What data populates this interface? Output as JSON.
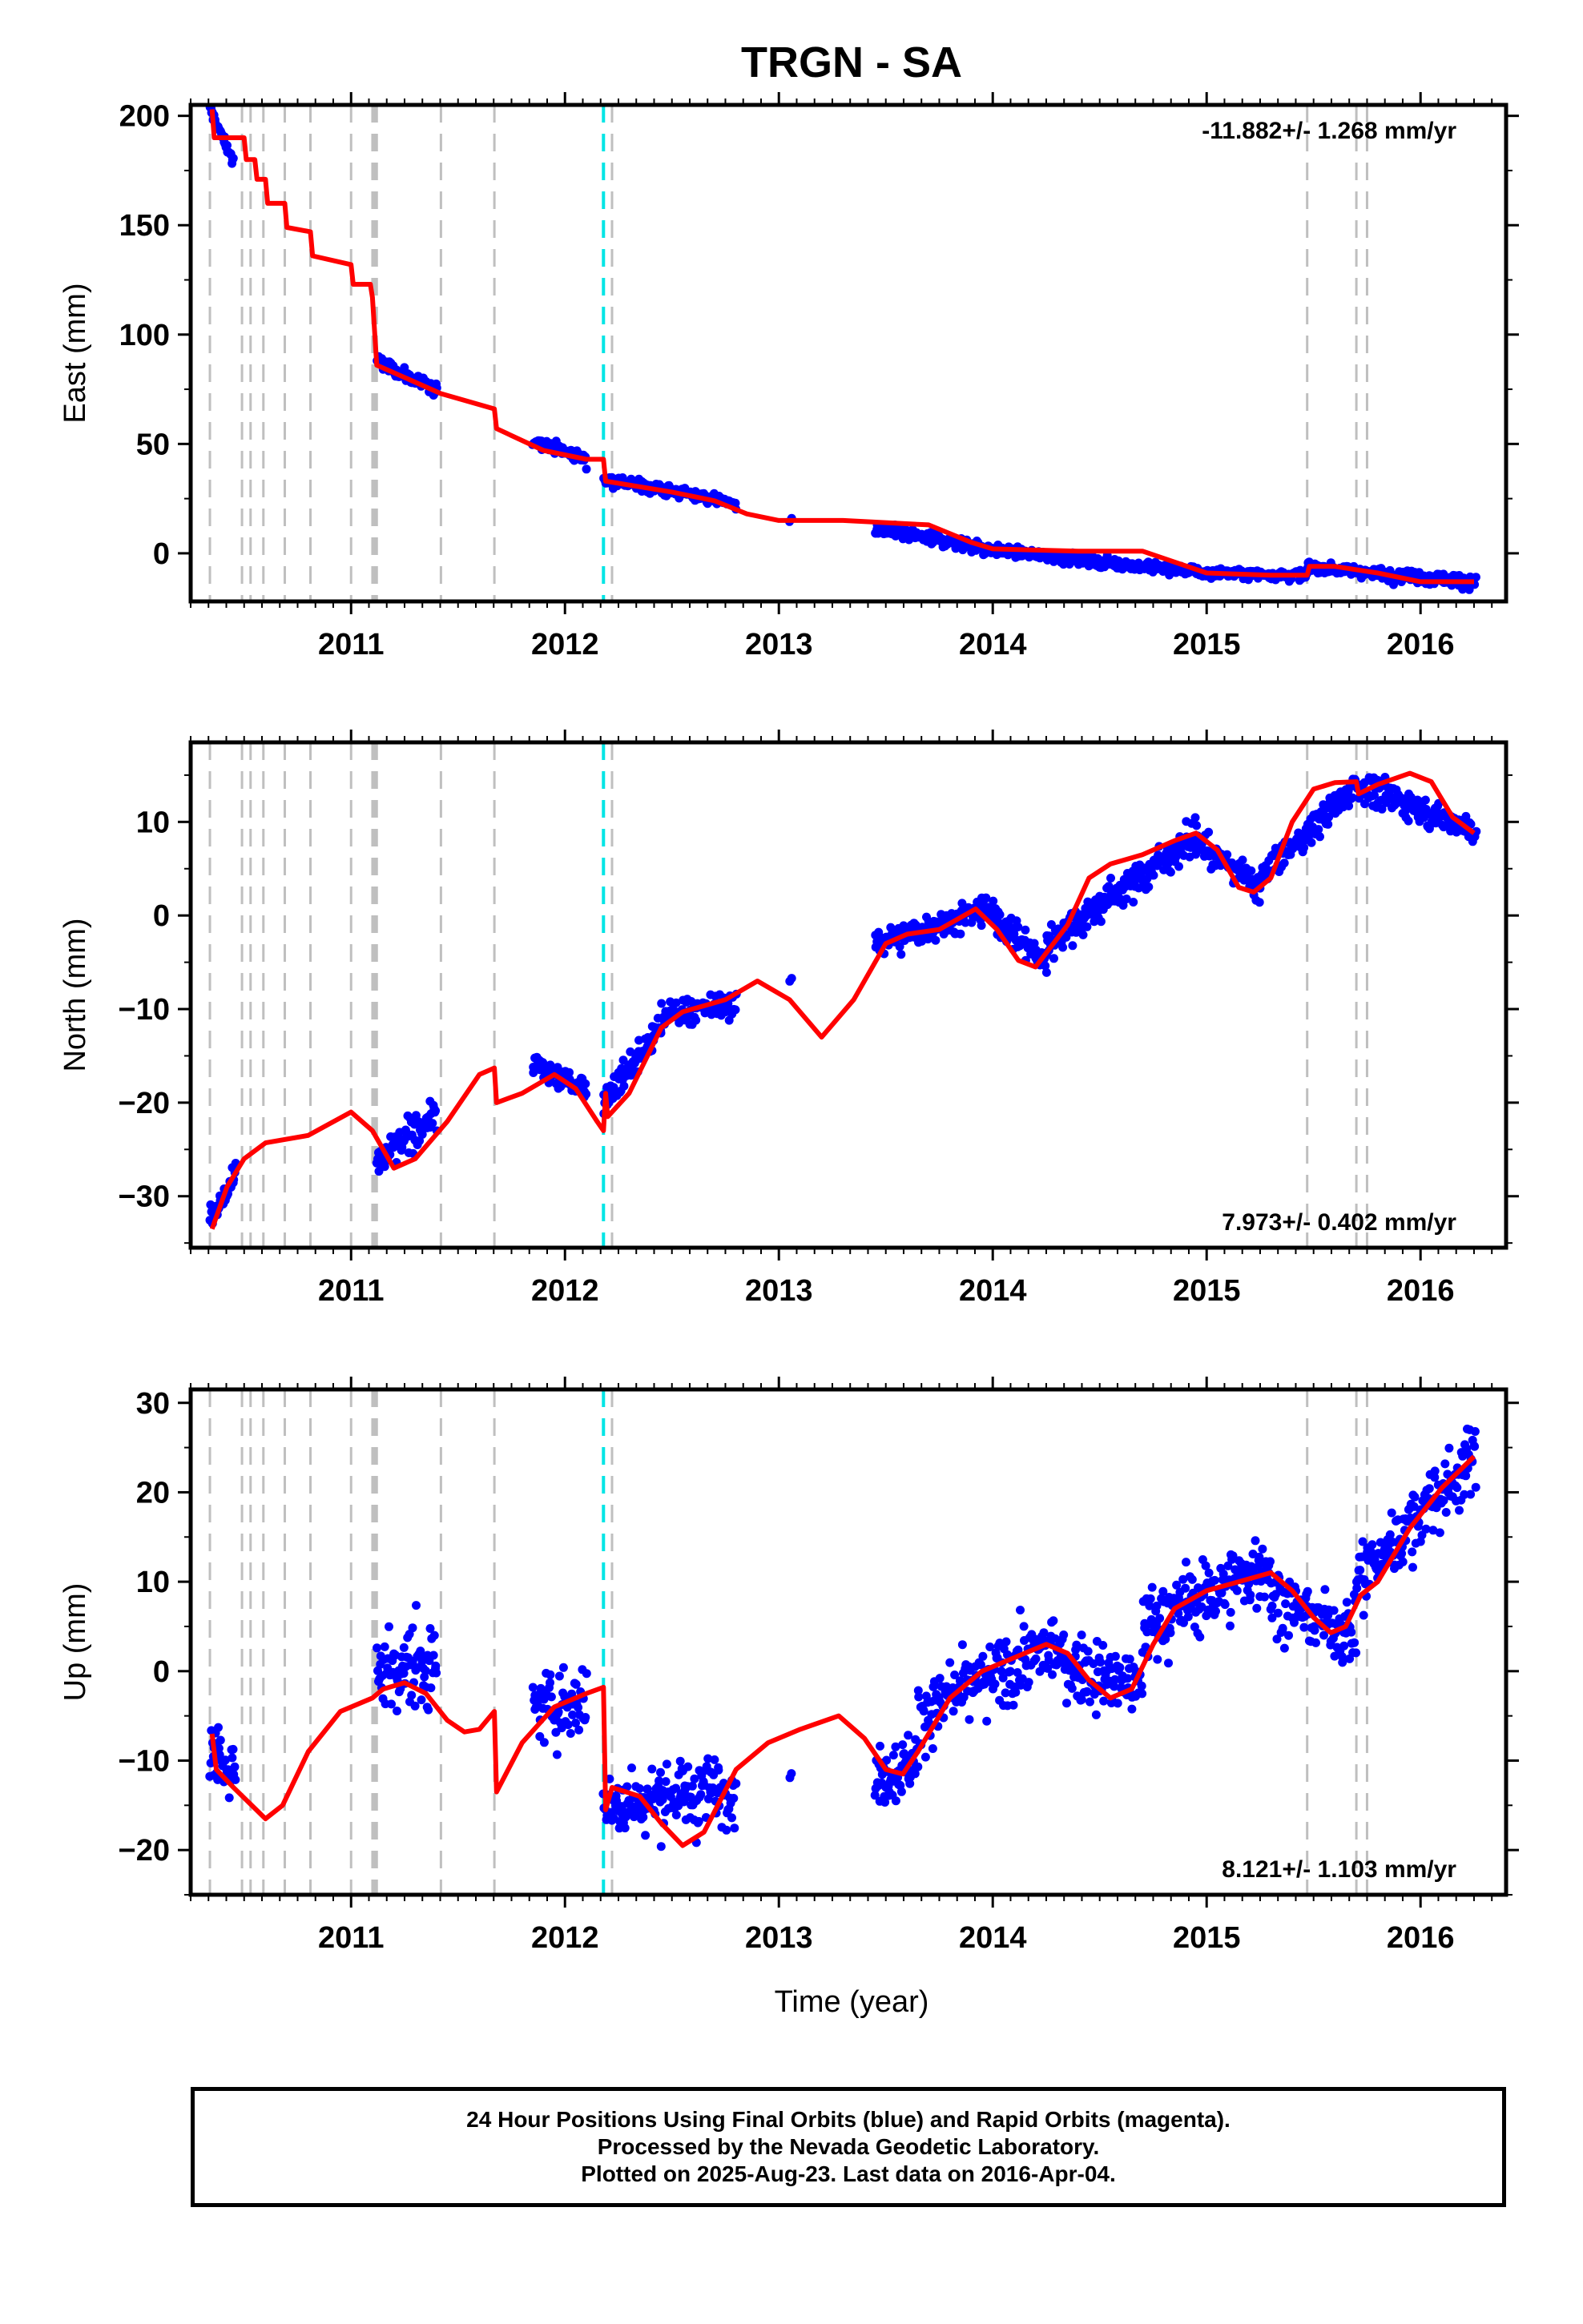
{
  "title": "TRGN - SA",
  "footer": {
    "line1": "24 Hour Positions Using Final Orbits (blue) and Rapid Orbits (magenta).",
    "line2": "Processed by the Nevada Geodetic Laboratory.",
    "line3": "Plotted on 2025-Aug-23. Last data on 2016-Apr-04."
  },
  "colors": {
    "final": "#0000ff",
    "model": "#ff0000",
    "event_gray": "#bfbfbf",
    "event_cyan": "#00e5e5"
  },
  "chart_data": [
    {
      "type": "scatter",
      "component": "east",
      "ylabel": "East (mm)",
      "rate_label": "-11.882+/- 1.268 mm/yr",
      "xlim": [
        2010.25,
        2016.4
      ],
      "ylim": [
        -22,
        205
      ],
      "yticks": [
        0,
        50,
        100,
        150,
        200
      ],
      "xticks": [
        2011,
        2012,
        2013,
        2014,
        2015,
        2016
      ],
      "model": [
        [
          2010.35,
          203
        ],
        [
          2010.36,
          190
        ],
        [
          2010.5,
          190
        ],
        [
          2010.51,
          180
        ],
        [
          2010.55,
          180
        ],
        [
          2010.56,
          171
        ],
        [
          2010.6,
          171
        ],
        [
          2010.61,
          160
        ],
        [
          2010.69,
          160
        ],
        [
          2010.7,
          149
        ],
        [
          2010.81,
          147
        ],
        [
          2010.82,
          136
        ],
        [
          2011.0,
          132
        ],
        [
          2011.01,
          123
        ],
        [
          2011.09,
          123
        ],
        [
          2011.1,
          117
        ],
        [
          2011.12,
          86
        ],
        [
          2011.42,
          73
        ],
        [
          2011.67,
          66
        ],
        [
          2011.68,
          57
        ],
        [
          2011.9,
          47
        ],
        [
          2012.1,
          43
        ],
        [
          2012.18,
          43
        ],
        [
          2012.19,
          33
        ],
        [
          2012.5,
          28
        ],
        [
          2012.7,
          24
        ],
        [
          2012.85,
          18
        ],
        [
          2013.0,
          15
        ],
        [
          2013.3,
          15
        ],
        [
          2013.7,
          13
        ],
        [
          2013.9,
          5
        ],
        [
          2014.0,
          2
        ],
        [
          2014.4,
          1
        ],
        [
          2014.7,
          1
        ],
        [
          2015.0,
          -9
        ],
        [
          2015.3,
          -10
        ],
        [
          2015.47,
          -10
        ],
        [
          2015.48,
          -6
        ],
        [
          2015.6,
          -6
        ],
        [
          2015.8,
          -9
        ],
        [
          2016.0,
          -13
        ],
        [
          2016.25,
          -13
        ]
      ],
      "observations": [
        {
          "start": 2010.34,
          "end": 2010.45,
          "a": 203,
          "b": 179,
          "noise": 2.5,
          "n": 30
        },
        {
          "start": 2011.12,
          "end": 2011.4,
          "a": 88,
          "b": 74,
          "noise": 2.5,
          "n": 70
        },
        {
          "start": 2011.85,
          "end": 2012.1,
          "a": 52,
          "b": 43,
          "noise": 2.5,
          "n": 65
        },
        {
          "start": 2012.18,
          "end": 2012.7,
          "a": 34,
          "b": 25,
          "noise": 2.5,
          "n": 130
        },
        {
          "start": 2012.7,
          "end": 2012.8,
          "a": 25,
          "b": 22,
          "noise": 2.0,
          "n": 25
        },
        {
          "start": 2013.05,
          "end": 2013.06,
          "a": 15,
          "b": 15,
          "noise": 1.0,
          "n": 2
        },
        {
          "start": 2013.45,
          "end": 2013.95,
          "a": 11,
          "b": 3,
          "noise": 2.5,
          "n": 130
        },
        {
          "start": 2013.95,
          "end": 2015.0,
          "a": 2,
          "b": -9,
          "noise": 2.0,
          "n": 260
        },
        {
          "start": 2015.0,
          "end": 2015.47,
          "a": -9,
          "b": -10,
          "noise": 2.0,
          "n": 120
        },
        {
          "start": 2015.47,
          "end": 2015.8,
          "a": -6,
          "b": -9,
          "noise": 2.0,
          "n": 85
        },
        {
          "start": 2015.8,
          "end": 2016.26,
          "a": -9,
          "b": -13,
          "noise": 2.5,
          "n": 120
        }
      ]
    },
    {
      "type": "scatter",
      "component": "north",
      "ylabel": "North (mm)",
      "rate_label": "7.973+/- 0.402 mm/yr",
      "xlim": [
        2010.25,
        2016.4
      ],
      "ylim": [
        -35.5,
        18.5
      ],
      "yticks": [
        -30,
        -20,
        -10,
        0,
        10
      ],
      "xticks": [
        2011,
        2012,
        2013,
        2014,
        2015,
        2016
      ],
      "model": [
        [
          2010.35,
          -33.5
        ],
        [
          2010.42,
          -29
        ],
        [
          2010.5,
          -26
        ],
        [
          2010.6,
          -24.3
        ],
        [
          2010.8,
          -23.5
        ],
        [
          2011.0,
          -21
        ],
        [
          2011.1,
          -23
        ],
        [
          2011.2,
          -27
        ],
        [
          2011.3,
          -26
        ],
        [
          2011.45,
          -22
        ],
        [
          2011.6,
          -17
        ],
        [
          2011.67,
          -16.3
        ],
        [
          2011.68,
          -20
        ],
        [
          2011.8,
          -19
        ],
        [
          2011.95,
          -17
        ],
        [
          2012.05,
          -18.5
        ],
        [
          2012.15,
          -22
        ],
        [
          2012.18,
          -23
        ],
        [
          2012.19,
          -19
        ],
        [
          2012.2,
          -21.5
        ],
        [
          2012.3,
          -19
        ],
        [
          2012.45,
          -12
        ],
        [
          2012.55,
          -10.3
        ],
        [
          2012.75,
          -9
        ],
        [
          2012.9,
          -7
        ],
        [
          2013.05,
          -9
        ],
        [
          2013.2,
          -13
        ],
        [
          2013.35,
          -9
        ],
        [
          2013.5,
          -3
        ],
        [
          2013.6,
          -2
        ],
        [
          2013.75,
          -1.5
        ],
        [
          2013.92,
          0.7
        ],
        [
          2014.02,
          -1.5
        ],
        [
          2014.12,
          -4.8
        ],
        [
          2014.2,
          -5.5
        ],
        [
          2014.35,
          -1
        ],
        [
          2014.45,
          4
        ],
        [
          2014.55,
          5.5
        ],
        [
          2014.7,
          6.5
        ],
        [
          2014.85,
          8
        ],
        [
          2014.95,
          8.8
        ],
        [
          2015.05,
          7
        ],
        [
          2015.15,
          3
        ],
        [
          2015.22,
          2.5
        ],
        [
          2015.3,
          4
        ],
        [
          2015.4,
          10
        ],
        [
          2015.5,
          13.5
        ],
        [
          2015.6,
          14.2
        ],
        [
          2015.7,
          14.3
        ],
        [
          2015.71,
          13
        ],
        [
          2015.8,
          14
        ],
        [
          2015.95,
          15.2
        ],
        [
          2016.05,
          14.3
        ],
        [
          2016.15,
          10.5
        ],
        [
          2016.25,
          8.8
        ]
      ],
      "observations": [
        {
          "start": 2010.34,
          "end": 2010.46,
          "a": -32.5,
          "b": -28,
          "noise": 1.2,
          "n": 30
        },
        {
          "start": 2011.12,
          "end": 2011.4,
          "a": -26.5,
          "b": -21,
          "noise": 1.5,
          "n": 70
        },
        {
          "start": 2011.85,
          "end": 2012.1,
          "a": -16,
          "b": -18.5,
          "noise": 1.2,
          "n": 65
        },
        {
          "start": 2012.18,
          "end": 2012.45,
          "a": -20,
          "b": -12,
          "noise": 1.3,
          "n": 80
        },
        {
          "start": 2012.45,
          "end": 2012.8,
          "a": -10.5,
          "b": -9.5,
          "noise": 1.2,
          "n": 75
        },
        {
          "start": 2013.05,
          "end": 2013.06,
          "a": -7,
          "b": -7,
          "noise": 0.5,
          "n": 2
        },
        {
          "start": 2013.45,
          "end": 2013.95,
          "a": -3,
          "b": 0.5,
          "noise": 1.3,
          "n": 130
        },
        {
          "start": 2013.95,
          "end": 2014.25,
          "a": 1,
          "b": -5,
          "noise": 1.3,
          "n": 90
        },
        {
          "start": 2014.25,
          "end": 2014.95,
          "a": -3,
          "b": 8.5,
          "noise": 1.5,
          "n": 180
        },
        {
          "start": 2014.95,
          "end": 2015.25,
          "a": 8,
          "b": 3,
          "noise": 1.3,
          "n": 80
        },
        {
          "start": 2015.25,
          "end": 2015.7,
          "a": 4,
          "b": 14,
          "noise": 1.3,
          "n": 120
        },
        {
          "start": 2015.7,
          "end": 2016.26,
          "a": 14,
          "b": 9,
          "noise": 1.3,
          "n": 140
        }
      ]
    },
    {
      "type": "scatter",
      "component": "up",
      "ylabel": "Up (mm)",
      "rate_label": "8.121+/- 1.103 mm/yr",
      "xlim": [
        2010.25,
        2016.4
      ],
      "ylim": [
        -25,
        31.5
      ],
      "yticks": [
        -20,
        -10,
        0,
        10,
        20,
        30
      ],
      "xticks": [
        2011,
        2012,
        2013,
        2014,
        2015,
        2016
      ],
      "model": [
        [
          2010.35,
          -7
        ],
        [
          2010.37,
          -11
        ],
        [
          2010.45,
          -13
        ],
        [
          2010.6,
          -16.5
        ],
        [
          2010.68,
          -15
        ],
        [
          2010.8,
          -9
        ],
        [
          2010.95,
          -4.5
        ],
        [
          2011.1,
          -3
        ],
        [
          2011.15,
          -2
        ],
        [
          2011.25,
          -1.3
        ],
        [
          2011.35,
          -2.5
        ],
        [
          2011.45,
          -5.5
        ],
        [
          2011.53,
          -6.8
        ],
        [
          2011.6,
          -6.5
        ],
        [
          2011.67,
          -4.5
        ],
        [
          2011.68,
          -13.5
        ],
        [
          2011.8,
          -8
        ],
        [
          2011.95,
          -4
        ],
        [
          2012.1,
          -2.5
        ],
        [
          2012.18,
          -1.8
        ],
        [
          2012.19,
          -15.5
        ],
        [
          2012.22,
          -13
        ],
        [
          2012.35,
          -14
        ],
        [
          2012.45,
          -17
        ],
        [
          2012.55,
          -19.5
        ],
        [
          2012.65,
          -18
        ],
        [
          2012.8,
          -11
        ],
        [
          2012.95,
          -8
        ],
        [
          2013.1,
          -6.5
        ],
        [
          2013.28,
          -5
        ],
        [
          2013.4,
          -7.5
        ],
        [
          2013.5,
          -11
        ],
        [
          2013.58,
          -11.5
        ],
        [
          2013.65,
          -9
        ],
        [
          2013.8,
          -3
        ],
        [
          2013.95,
          0
        ],
        [
          2014.1,
          1.5
        ],
        [
          2014.25,
          3
        ],
        [
          2014.35,
          2
        ],
        [
          2014.45,
          -1
        ],
        [
          2014.55,
          -3
        ],
        [
          2014.65,
          -2
        ],
        [
          2014.75,
          3
        ],
        [
          2014.85,
          7
        ],
        [
          2015.0,
          9
        ],
        [
          2015.15,
          10
        ],
        [
          2015.3,
          11
        ],
        [
          2015.4,
          9
        ],
        [
          2015.5,
          6
        ],
        [
          2015.58,
          4.3
        ],
        [
          2015.65,
          5
        ],
        [
          2015.72,
          8.5
        ],
        [
          2015.8,
          10
        ],
        [
          2015.95,
          16
        ],
        [
          2016.1,
          20.5
        ],
        [
          2016.25,
          24
        ]
      ],
      "observations": [
        {
          "start": 2010.34,
          "end": 2010.46,
          "a": -9,
          "b": -12,
          "noise": 3.0,
          "n": 35
        },
        {
          "start": 2011.12,
          "end": 2011.4,
          "a": 0,
          "b": 1,
          "noise": 4.0,
          "n": 75
        },
        {
          "start": 2011.85,
          "end": 2012.1,
          "a": -4.5,
          "b": -3,
          "noise": 3.5,
          "n": 65
        },
        {
          "start": 2012.18,
          "end": 2012.8,
          "a": -15,
          "b": -13,
          "noise": 3.2,
          "n": 170
        },
        {
          "start": 2013.05,
          "end": 2013.06,
          "a": -12,
          "b": -12,
          "noise": 3.0,
          "n": 2
        },
        {
          "start": 2013.45,
          "end": 2013.65,
          "a": -12,
          "b": -10,
          "noise": 3.0,
          "n": 60
        },
        {
          "start": 2013.65,
          "end": 2014.3,
          "a": -5,
          "b": 3,
          "noise": 3.2,
          "n": 160
        },
        {
          "start": 2014.3,
          "end": 2014.7,
          "a": 1,
          "b": -2,
          "noise": 3.2,
          "n": 110
        },
        {
          "start": 2014.7,
          "end": 2015.3,
          "a": 5,
          "b": 12,
          "noise": 3.5,
          "n": 160
        },
        {
          "start": 2015.3,
          "end": 2015.7,
          "a": 8,
          "b": 4,
          "noise": 3.0,
          "n": 100
        },
        {
          "start": 2015.7,
          "end": 2016.26,
          "a": 10,
          "b": 24,
          "noise": 3.2,
          "n": 150
        }
      ]
    }
  ],
  "event_lines": {
    "gray": [
      2010.34,
      2010.49,
      2010.53,
      2010.59,
      2010.69,
      2010.81,
      2011.0,
      2011.1,
      2011.11,
      2011.12,
      2011.42,
      2011.67,
      2012.22,
      2015.47,
      2015.7,
      2015.75
    ],
    "cyan": [
      2012.18
    ]
  },
  "xlabel": "Time (year)"
}
